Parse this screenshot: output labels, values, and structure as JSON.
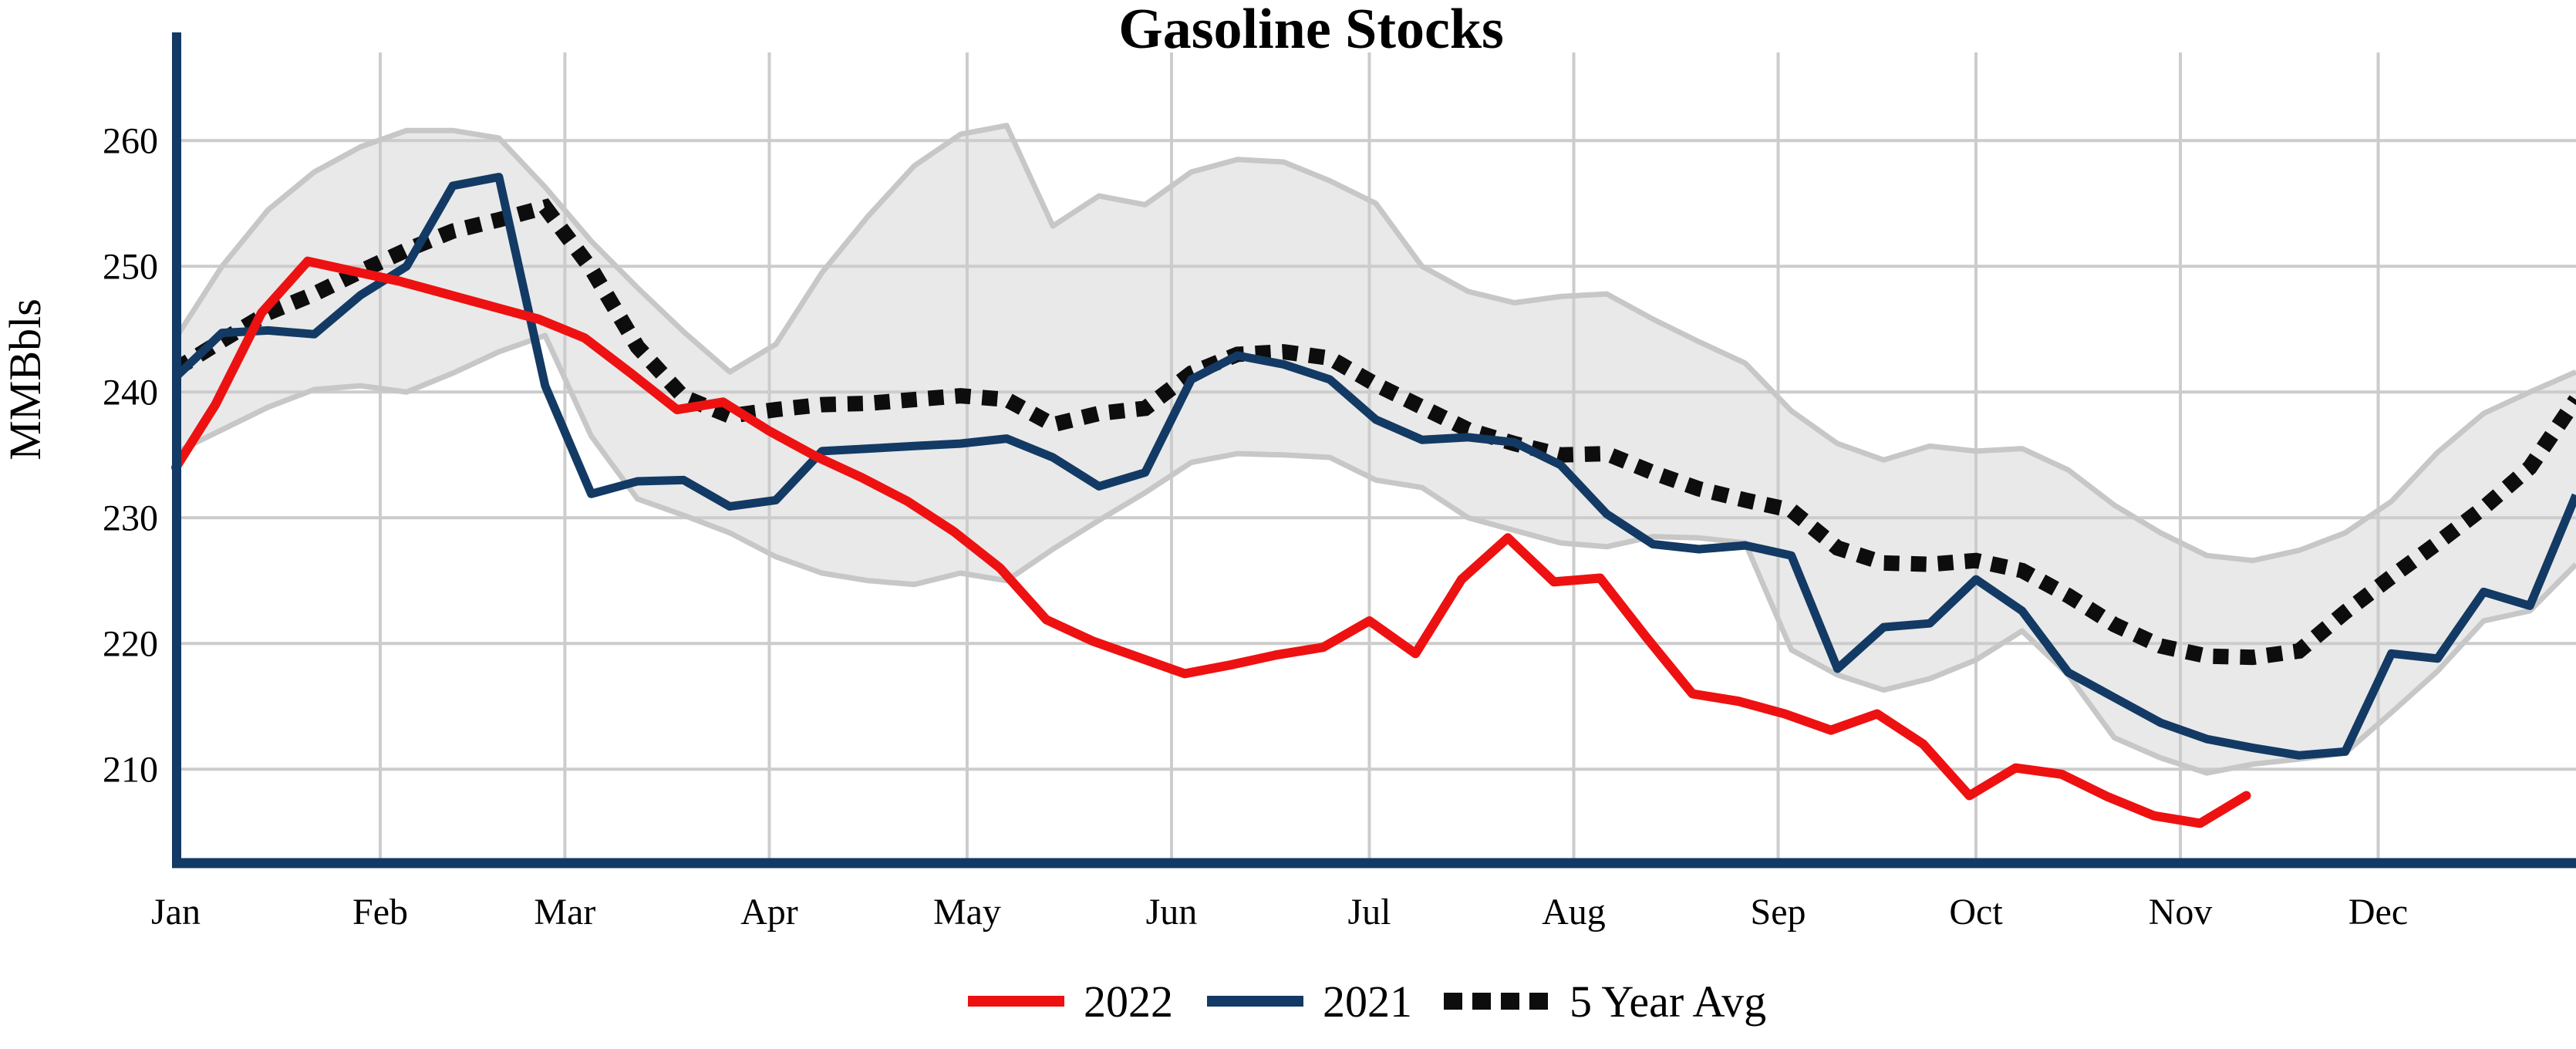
{
  "chart_data": {
    "type": "line",
    "title": "Gasoline Stocks",
    "ylabel": "MMBbls",
    "legend": [
      "2022",
      "2021",
      "5 Year Avg"
    ],
    "yticks": [
      210,
      220,
      230,
      240,
      250,
      260
    ],
    "ylim": [
      202.9,
      267.5
    ],
    "x_unit": "day_of_year",
    "xlim": [
      1,
      365
    ],
    "months": [
      {
        "label": "Jan",
        "day": 1
      },
      {
        "label": "Feb",
        "day": 32
      },
      {
        "label": "Mar",
        "day": 60
      },
      {
        "label": "Apr",
        "day": 91
      },
      {
        "label": "May",
        "day": 121
      },
      {
        "label": "Jun",
        "day": 152
      },
      {
        "label": "Jul",
        "day": 182
      },
      {
        "label": "Aug",
        "day": 213
      },
      {
        "label": "Sep",
        "day": 244
      },
      {
        "label": "Oct",
        "day": 274
      },
      {
        "label": "Nov",
        "day": 305
      },
      {
        "label": "Dec",
        "day": 335
      }
    ],
    "colors": {
      "y2022": "#ee1111",
      "y2021": "#123a64",
      "five_year_avg": "#0d0d0d",
      "band_fill": "#e9e9e9",
      "band_edge": "#c7c7c7",
      "grid": "#cccccc",
      "axis": "#123a64"
    },
    "legend_position": "bottom-center",
    "grid": true,
    "series": {
      "five_year_range_upper": [
        [
          1,
          244.3
        ],
        [
          8,
          250.0
        ],
        [
          15,
          254.5
        ],
        [
          22,
          257.5
        ],
        [
          29,
          259.5
        ],
        [
          36,
          260.8
        ],
        [
          43,
          260.8
        ],
        [
          50,
          260.2
        ],
        [
          57,
          256.3
        ],
        [
          64,
          252.0
        ],
        [
          71,
          248.3
        ],
        [
          78,
          244.8
        ],
        [
          85,
          241.6
        ],
        [
          92,
          243.8
        ],
        [
          99,
          249.5
        ],
        [
          106,
          254.0
        ],
        [
          113,
          258.0
        ],
        [
          120,
          260.5
        ],
        [
          127,
          261.2
        ],
        [
          134,
          253.2
        ],
        [
          141,
          255.6
        ],
        [
          148,
          254.9
        ],
        [
          155,
          257.5
        ],
        [
          162,
          258.5
        ],
        [
          169,
          258.3
        ],
        [
          176,
          256.8
        ],
        [
          183,
          255.0
        ],
        [
          190,
          250.0
        ],
        [
          197,
          248.0
        ],
        [
          204,
          247.1
        ],
        [
          211,
          247.6
        ],
        [
          218,
          247.8
        ],
        [
          225,
          245.8
        ],
        [
          232,
          244.0
        ],
        [
          239,
          242.3
        ],
        [
          246,
          238.5
        ],
        [
          253,
          235.9
        ],
        [
          260,
          234.6
        ],
        [
          267,
          235.7
        ],
        [
          274,
          235.3
        ],
        [
          281,
          235.5
        ],
        [
          288,
          233.8
        ],
        [
          295,
          231.0
        ],
        [
          302,
          228.8
        ],
        [
          309,
          227.0
        ],
        [
          316,
          226.6
        ],
        [
          323,
          227.4
        ],
        [
          330,
          228.8
        ],
        [
          337,
          231.3
        ],
        [
          344,
          235.2
        ],
        [
          351,
          238.3
        ],
        [
          358,
          240.0
        ],
        [
          365,
          241.6
        ]
      ],
      "five_year_range_lower": [
        [
          1,
          235.2
        ],
        [
          8,
          237.0
        ],
        [
          15,
          238.8
        ],
        [
          22,
          240.2
        ],
        [
          29,
          240.5
        ],
        [
          36,
          240.0
        ],
        [
          43,
          241.5
        ],
        [
          50,
          243.2
        ],
        [
          57,
          244.5
        ],
        [
          64,
          236.5
        ],
        [
          71,
          231.5
        ],
        [
          78,
          230.2
        ],
        [
          85,
          228.8
        ],
        [
          92,
          226.9
        ],
        [
          99,
          225.6
        ],
        [
          106,
          225.0
        ],
        [
          113,
          224.7
        ],
        [
          120,
          225.6
        ],
        [
          127,
          225.0
        ],
        [
          134,
          227.5
        ],
        [
          141,
          229.8
        ],
        [
          148,
          232.0
        ],
        [
          155,
          234.4
        ],
        [
          162,
          235.1
        ],
        [
          169,
          235.0
        ],
        [
          176,
          234.8
        ],
        [
          183,
          233.0
        ],
        [
          190,
          232.4
        ],
        [
          197,
          230.0
        ],
        [
          204,
          229.0
        ],
        [
          211,
          228.0
        ],
        [
          218,
          227.7
        ],
        [
          225,
          228.5
        ],
        [
          232,
          228.4
        ],
        [
          239,
          228.0
        ],
        [
          246,
          219.5
        ],
        [
          253,
          217.5
        ],
        [
          260,
          216.3
        ],
        [
          267,
          217.2
        ],
        [
          274,
          218.7
        ],
        [
          281,
          221.0
        ],
        [
          288,
          217.5
        ],
        [
          295,
          212.5
        ],
        [
          302,
          210.9
        ],
        [
          309,
          209.7
        ],
        [
          316,
          210.4
        ],
        [
          323,
          210.8
        ],
        [
          330,
          211.3
        ],
        [
          337,
          214.5
        ],
        [
          344,
          217.8
        ],
        [
          351,
          221.8
        ],
        [
          358,
          222.6
        ],
        [
          365,
          226.3
        ]
      ],
      "five_year_avg": [
        [
          1,
          241.8
        ],
        [
          8,
          244.1
        ],
        [
          15,
          246.3
        ],
        [
          22,
          247.8
        ],
        [
          29,
          249.6
        ],
        [
          36,
          251.3
        ],
        [
          43,
          252.8
        ],
        [
          50,
          253.7
        ],
        [
          57,
          254.7
        ],
        [
          64,
          249.8
        ],
        [
          71,
          243.6
        ],
        [
          78,
          239.6
        ],
        [
          85,
          238.1
        ],
        [
          92,
          238.6
        ],
        [
          99,
          239.0
        ],
        [
          106,
          239.1
        ],
        [
          113,
          239.4
        ],
        [
          120,
          239.7
        ],
        [
          127,
          239.4
        ],
        [
          134,
          237.4
        ],
        [
          141,
          238.3
        ],
        [
          148,
          238.7
        ],
        [
          155,
          241.5
        ],
        [
          162,
          243.0
        ],
        [
          169,
          243.2
        ],
        [
          176,
          242.7
        ],
        [
          183,
          240.6
        ],
        [
          190,
          238.8
        ],
        [
          197,
          237.0
        ],
        [
          204,
          235.9
        ],
        [
          211,
          235.0
        ],
        [
          218,
          235.1
        ],
        [
          225,
          233.6
        ],
        [
          232,
          232.3
        ],
        [
          239,
          231.4
        ],
        [
          246,
          230.6
        ],
        [
          253,
          227.6
        ],
        [
          260,
          226.4
        ],
        [
          267,
          226.3
        ],
        [
          274,
          226.6
        ],
        [
          281,
          225.8
        ],
        [
          288,
          223.8
        ],
        [
          295,
          221.5
        ],
        [
          302,
          219.8
        ],
        [
          309,
          219.0
        ],
        [
          316,
          218.9
        ],
        [
          323,
          219.4
        ],
        [
          330,
          222.5
        ],
        [
          337,
          225.3
        ],
        [
          344,
          228.0
        ],
        [
          351,
          230.8
        ],
        [
          358,
          234.0
        ],
        [
          365,
          239.4
        ]
      ],
      "y2021": [
        [
          1,
          241.2
        ],
        [
          8,
          244.7
        ],
        [
          15,
          244.9
        ],
        [
          22,
          244.6
        ],
        [
          29,
          247.7
        ],
        [
          36,
          250.0
        ],
        [
          43,
          256.4
        ],
        [
          50,
          257.1
        ],
        [
          57,
          240.5
        ],
        [
          64,
          231.9
        ],
        [
          71,
          232.9
        ],
        [
          78,
          233.0
        ],
        [
          85,
          230.9
        ],
        [
          92,
          231.4
        ],
        [
          99,
          235.3
        ],
        [
          106,
          235.5
        ],
        [
          113,
          235.7
        ],
        [
          120,
          235.9
        ],
        [
          127,
          236.3
        ],
        [
          134,
          234.8
        ],
        [
          141,
          232.5
        ],
        [
          148,
          233.6
        ],
        [
          155,
          241.0
        ],
        [
          162,
          242.9
        ],
        [
          169,
          242.2
        ],
        [
          176,
          241.0
        ],
        [
          183,
          237.8
        ],
        [
          190,
          236.2
        ],
        [
          197,
          236.4
        ],
        [
          204,
          236.0
        ],
        [
          211,
          234.2
        ],
        [
          218,
          230.3
        ],
        [
          225,
          227.9
        ],
        [
          232,
          227.5
        ],
        [
          239,
          227.8
        ],
        [
          246,
          227.0
        ],
        [
          253,
          218.0
        ],
        [
          260,
          221.3
        ],
        [
          267,
          221.6
        ],
        [
          274,
          225.1
        ],
        [
          281,
          222.6
        ],
        [
          288,
          217.7
        ],
        [
          295,
          215.7
        ],
        [
          302,
          213.7
        ],
        [
          309,
          212.4
        ],
        [
          316,
          211.7
        ],
        [
          323,
          211.1
        ],
        [
          330,
          211.4
        ],
        [
          337,
          219.2
        ],
        [
          344,
          218.8
        ],
        [
          351,
          224.1
        ],
        [
          358,
          223.0
        ],
        [
          365,
          231.8
        ]
      ],
      "y2022": [
        [
          1,
          234.0
        ],
        [
          7,
          239.0
        ],
        [
          14,
          246.3
        ],
        [
          21,
          250.4
        ],
        [
          28,
          249.6
        ],
        [
          35,
          248.8
        ],
        [
          42,
          247.8
        ],
        [
          49,
          246.8
        ],
        [
          56,
          245.8
        ],
        [
          63,
          244.3
        ],
        [
          70,
          241.5
        ],
        [
          77,
          238.6
        ],
        [
          84,
          239.2
        ],
        [
          91,
          236.9
        ],
        [
          98,
          234.9
        ],
        [
          105,
          233.2
        ],
        [
          112,
          231.3
        ],
        [
          119,
          228.9
        ],
        [
          126,
          226.0
        ],
        [
          133,
          221.9
        ],
        [
          140,
          220.2
        ],
        [
          147,
          218.9
        ],
        [
          154,
          217.6
        ],
        [
          161,
          218.3
        ],
        [
          168,
          219.1
        ],
        [
          175,
          219.7
        ],
        [
          182,
          221.8
        ],
        [
          189,
          219.2
        ],
        [
          196,
          225.1
        ],
        [
          203,
          228.4
        ],
        [
          210,
          224.9
        ],
        [
          217,
          225.2
        ],
        [
          224,
          220.5
        ],
        [
          231,
          216.0
        ],
        [
          238,
          215.4
        ],
        [
          245,
          214.4
        ],
        [
          252,
          213.1
        ],
        [
          259,
          214.4
        ],
        [
          266,
          212.0
        ],
        [
          273,
          207.9
        ],
        [
          280,
          210.1
        ],
        [
          287,
          209.6
        ],
        [
          294,
          207.8
        ],
        [
          301,
          206.3
        ],
        [
          308,
          205.7
        ],
        [
          315,
          207.9
        ]
      ]
    }
  }
}
